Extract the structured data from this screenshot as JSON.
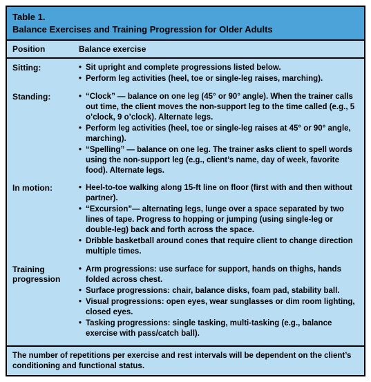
{
  "table": {
    "title_line1": "Table 1.",
    "title_line2": "Balance Exercises and Training Progression for Older Adults",
    "header_col1": "Position",
    "header_col2": "Balance exercise",
    "sections": [
      {
        "label": "Sitting:",
        "bullets": [
          "Sit upright and complete progressions listed below.",
          "Perform leg activities (heel, toe or single-leg raises, marching)."
        ]
      },
      {
        "label": "Standing:",
        "bullets": [
          "“Clock” — balance on one leg (45° or 90° angle). When the trainer calls out time, the client moves the non-support leg to the time called (e.g., 5 o’clock, 9 o’clock). Alternate legs.",
          "Perform leg activities (heel, toe or single-leg raises at 45° or 90° angle, marching).",
          "“Spelling” — balance on one leg. The trainer asks client to spell words using the non-support leg (e.g., client’s name, day of week, favorite food). Alternate legs."
        ]
      },
      {
        "label": "In motion:",
        "bullets": [
          "Heel-to-toe walking along 15-ft line on floor (first with and then without partner).",
          "“Excursion”— alternating legs, lunge over a space separated by two lines of tape. Progress to hopping or jumping (using single-leg or double-leg) back and forth across the space.",
          "Dribble basketball around cones that require client to change direction multiple times."
        ]
      },
      {
        "label": "Training progression",
        "bullets": [
          "Arm progressions: use surface for support, hands on thighs, hands folded across chest.",
          "Surface progressions: chair, balance disks, foam pad, stability ball.",
          "Visual progressions: open eyes, wear sunglasses or dim room lighting, closed eyes.",
          "Tasking progressions: single tasking, multi-tasking (e.g., balance exercise with pass/catch ball)."
        ]
      }
    ],
    "footer": "The number of repetitions per exercise and rest intervals will be dependent on the client’s conditioning and functional status."
  },
  "colors": {
    "title_bg": "#4ca3d9",
    "body_bg": "#b9ddf2",
    "border": "#000000",
    "text": "#000000"
  }
}
